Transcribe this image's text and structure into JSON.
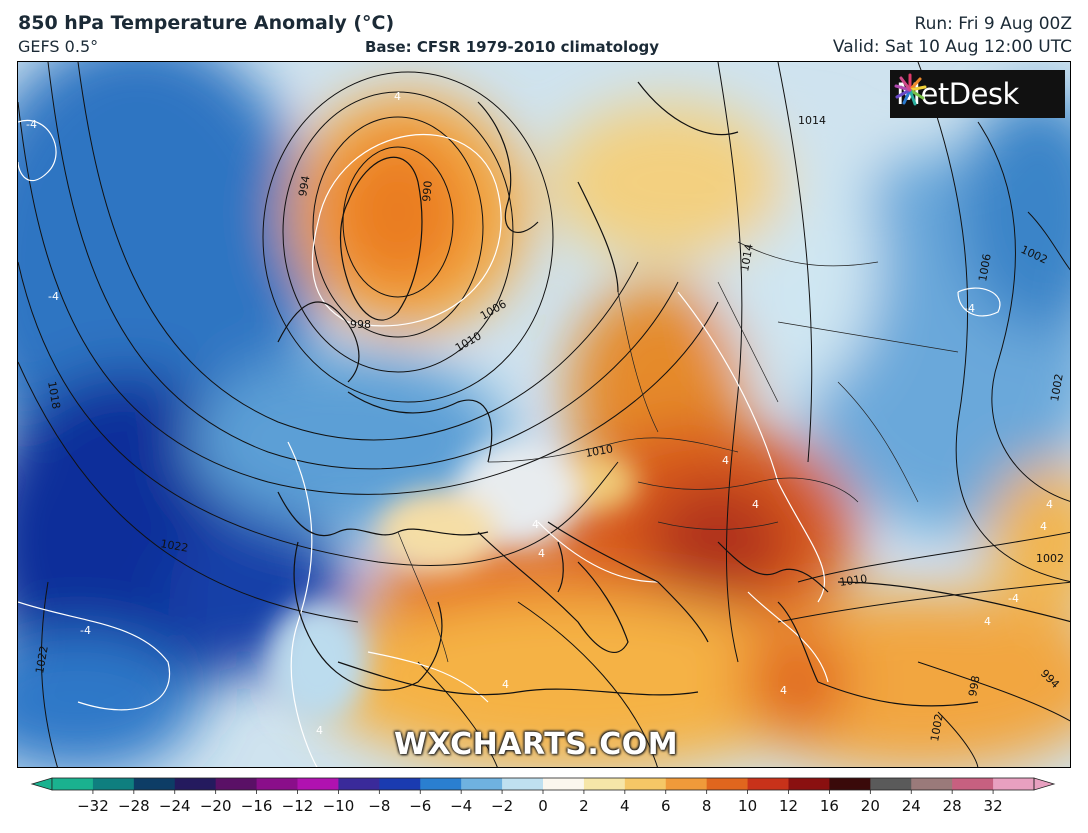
{
  "header": {
    "title": "850 hPa Temperature Anomaly (°C)",
    "model": "GEFS 0.5°",
    "base": "Base: CFSR 1979-2010 climatology",
    "run": "Run: Fri 9 Aug 00Z",
    "valid": "Valid: Sat 10 Aug 12:00 UTC"
  },
  "branding": {
    "logo_text": "MetDesk",
    "logo_icon": "metdesk-starburst-icon",
    "watermark": "WXCHARTS.COM"
  },
  "map": {
    "region": "Europe",
    "isobar_labels": [
      "994",
      "990",
      "998",
      "1006",
      "1010",
      "1014",
      "1014",
      "1018",
      "1022",
      "1022",
      "1010",
      "1010",
      "1002",
      "1006",
      "1002",
      "994",
      "998",
      "1002",
      "1002"
    ],
    "anomaly_labels": [
      "-4",
      "-4",
      "-4",
      "-4",
      "-4",
      "4",
      "4",
      "4",
      "4",
      "4",
      "4",
      "4",
      "4",
      "4",
      "4",
      "4"
    ]
  },
  "colorbar": {
    "tick_labels": [
      "−32",
      "−28",
      "−24",
      "−20",
      "−16",
      "−12",
      "−10",
      "−8",
      "−6",
      "−4",
      "−2",
      "0",
      "2",
      "4",
      "6",
      "8",
      "10",
      "12",
      "16",
      "20",
      "24",
      "28",
      "32"
    ],
    "colors": [
      "#1ab28f",
      "#0f7f7f",
      "#0d3d66",
      "#241a5e",
      "#5a1066",
      "#8a0e8a",
      "#b012b0",
      "#3a2a9a",
      "#1a3bb0",
      "#2a7fd0",
      "#6fb2e0",
      "#bfe0f0",
      "#fbf7ee",
      "#f6e6a8",
      "#f5c766",
      "#f09a3a",
      "#e0661e",
      "#c8321a",
      "#8a1010",
      "#3a0a0a",
      "#5a5a5a",
      "#9a7a7a",
      "#c76080",
      "#e8a0c0"
    ]
  }
}
